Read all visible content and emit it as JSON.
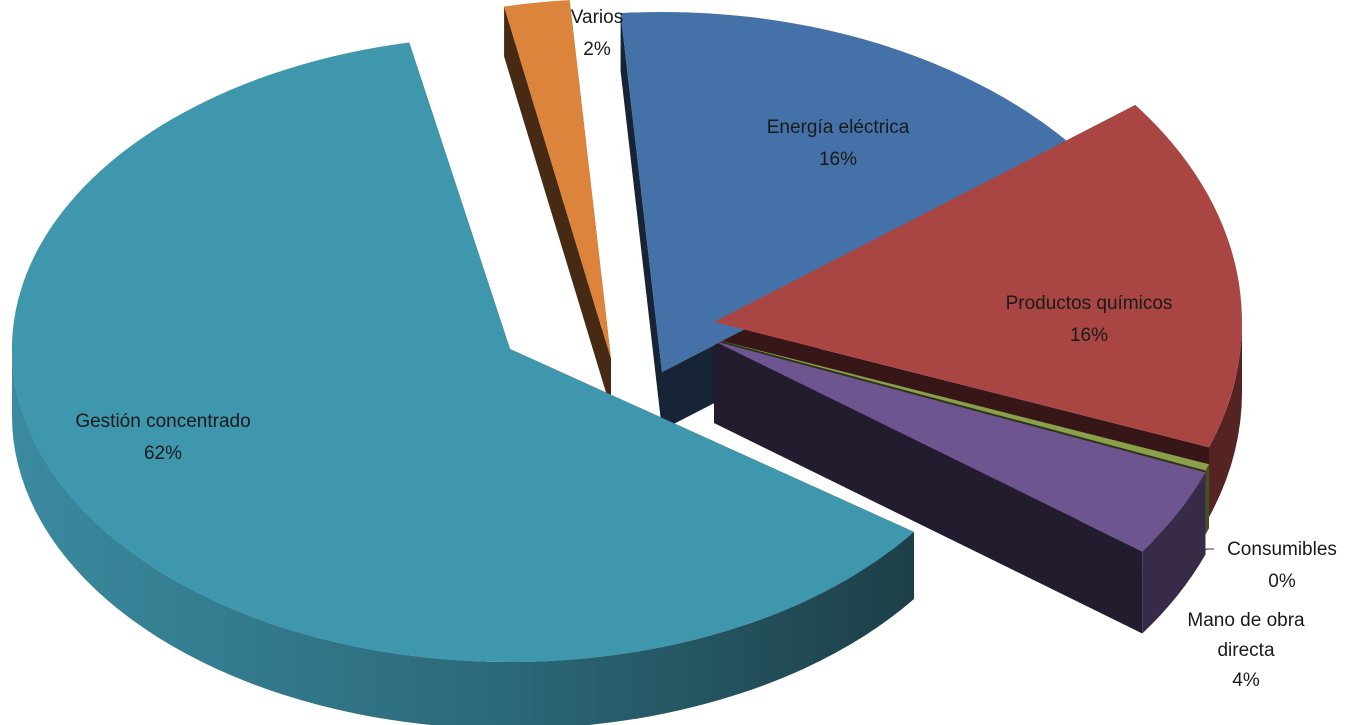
{
  "chart_data": {
    "type": "pie",
    "style": "3d-exploded",
    "title": "",
    "legend": "none",
    "slices": [
      {
        "name": "Energía eléctrica",
        "value": 16,
        "label": "16%",
        "color": "#4472A8"
      },
      {
        "name": "Productos químicos",
        "value": 16,
        "label": "16%",
        "color": "#A94644"
      },
      {
        "name": "Consumibles",
        "value": 0.3,
        "label": "0%",
        "color": "#8BA04B"
      },
      {
        "name": "Mano de obra directa",
        "value": 4,
        "label": "4%",
        "color": "#6E5590"
      },
      {
        "name": "Gestión concentrado",
        "value": 62,
        "label": "62%",
        "color": "#3F97AD"
      },
      {
        "name": "Varios",
        "value": 2,
        "label": "2%",
        "color": "#DD843C"
      }
    ]
  }
}
